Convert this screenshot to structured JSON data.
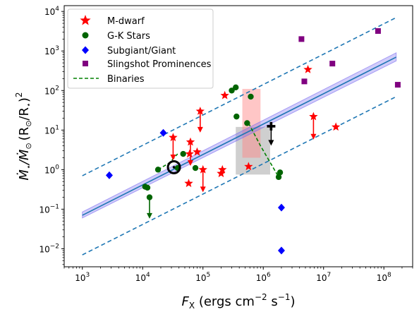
{
  "chart_data": {
    "type": "scatter",
    "title": "",
    "xscale": "log",
    "yscale": "log",
    "xlim": [
      500,
      300000000
    ],
    "ylim": [
      0.0035,
      14000
    ],
    "grid": false,
    "legend_position": "top-left",
    "xlabel": {
      "main": "F",
      "sub": "X",
      "unit_open": " (ergs cm",
      "exp1": "−2",
      "unit_mid": " s",
      "exp2": "−1",
      "unit_close": ")"
    },
    "ylabel": {
      "dotM1": "Ṁ",
      "sub1": "⋆",
      "slash": "/Ṁ",
      "sub2": "⊙",
      "open": "(R",
      "sub3": "⊙",
      "mid": "/R",
      "sub4": "⋆",
      "close": ")",
      "exp": "2"
    },
    "xticks": [
      {
        "v": 1000,
        "base": "10",
        "exp": "3"
      },
      {
        "v": 10000,
        "base": "10",
        "exp": "4"
      },
      {
        "v": 100000,
        "base": "10",
        "exp": "5"
      },
      {
        "v": 1000000,
        "base": "10",
        "exp": "6"
      },
      {
        "v": 10000000,
        "base": "10",
        "exp": "7"
      },
      {
        "v": 100000000,
        "base": "10",
        "exp": "8"
      }
    ],
    "yticks": [
      {
        "v": 0.01,
        "base": "10",
        "exp": "−2"
      },
      {
        "v": 0.1,
        "base": "10",
        "exp": "−1"
      },
      {
        "v": 1,
        "base": "10",
        "exp": "0"
      },
      {
        "v": 10,
        "base": "10",
        "exp": "1"
      },
      {
        "v": 100,
        "base": "10",
        "exp": "2"
      },
      {
        "v": 1000,
        "base": "10",
        "exp": "3"
      },
      {
        "v": 10000,
        "base": "10",
        "exp": "4"
      }
    ],
    "legend": [
      {
        "label": "M-dwarf",
        "marker": "star",
        "color": "#ff0000"
      },
      {
        "label": "G-K Stars",
        "marker": "circle",
        "color": "#006400"
      },
      {
        "label": "Subgiant/Giant",
        "marker": "diamond",
        "color": "#0000ff"
      },
      {
        "label": "Slingshot Prominences",
        "marker": "square",
        "color": "#800080"
      },
      {
        "label": "Binaries",
        "marker": "dashed-line",
        "color": "#008000"
      }
    ],
    "colors": {
      "mdwarf": "#ff0000",
      "gk": "#006400",
      "giant": "#0000ff",
      "slingshot": "#800080",
      "fit": "#1f77b4",
      "band": "#7b6cf0",
      "binary": "#008000"
    },
    "fit": {
      "x": [
        1000,
        160000000
      ],
      "y": [
        0.07,
        700
      ]
    },
    "fit_band": {
      "lower": [
        0.06,
        560
      ],
      "upper": [
        0.085,
        900
      ]
    },
    "dashed_upper": {
      "x": [
        1000,
        160000000
      ],
      "y": [
        0.7,
        7000
      ]
    },
    "dashed_lower": {
      "x": [
        1000,
        160000000
      ],
      "y": [
        0.007,
        70
      ]
    },
    "series": [
      {
        "name": "M-dwarf",
        "points": [
          [
            32000,
            6.5
          ],
          [
            90000,
            30
          ],
          [
            62000,
            5
          ],
          [
            60000,
            2.5
          ],
          [
            80000,
            2.8
          ],
          [
            100000,
            1.0
          ],
          [
            200000,
            0.8
          ],
          [
            210000,
            1.0
          ],
          [
            230000,
            75
          ],
          [
            570000,
            1.2
          ],
          [
            58000,
            0.45
          ],
          [
            5500000,
            340
          ],
          [
            6800000,
            22
          ],
          [
            16000000,
            12
          ]
        ],
        "upper_limits": [
          [
            32000,
            6.5,
            1.8
          ],
          [
            90000,
            30,
            9
          ],
          [
            62000,
            5,
            1.3
          ],
          [
            100000,
            1.0,
            0.28
          ],
          [
            6800000,
            22,
            6
          ]
        ]
      },
      {
        "name": "G-K Stars",
        "points": [
          [
            18000,
            1.0
          ],
          [
            11000,
            0.37
          ],
          [
            12000,
            0.35
          ],
          [
            13000,
            0.2
          ],
          [
            38000,
            1.1
          ],
          [
            47000,
            2.5
          ],
          [
            75000,
            1.1
          ],
          [
            300000,
            100
          ],
          [
            350000,
            120
          ],
          [
            360000,
            22
          ],
          [
            540000,
            15
          ],
          [
            620000,
            70
          ],
          [
            1800000,
            0.65
          ],
          [
            1900000,
            0.85
          ]
        ],
        "upper_limits": [
          [
            13000,
            0.2,
            0.06
          ]
        ]
      },
      {
        "name": "Subgiant/Giant",
        "points": [
          [
            2800,
            0.72
          ],
          [
            22000,
            8.5
          ],
          [
            2000000,
            0.11
          ],
          [
            2000000,
            0.009
          ]
        ]
      },
      {
        "name": "Slingshot Prominences",
        "points": [
          [
            4300000,
            2000
          ],
          [
            4800000,
            170
          ],
          [
            14000000,
            480
          ],
          [
            80000000,
            3200
          ],
          [
            170000000,
            140
          ]
        ]
      }
    ],
    "sun": {
      "x": 33000,
      "y": 1.15
    },
    "cross_limit": {
      "x": 1350000,
      "y": 12.5,
      "y_end": 4.2,
      "color": "#000000"
    },
    "binaries": [
      {
        "x": [
          18000,
          28000,
          38000
        ],
        "y": [
          1.0,
          1.5,
          2.5
        ]
      },
      {
        "x": [
          570000,
          900000,
          1800000
        ],
        "y": [
          15,
          4,
          0.65
        ]
      }
    ],
    "rects": [
      {
        "x0": 350000,
        "x1": 1300000,
        "y0": 0.75,
        "y1": 12,
        "color": "#a0a0a0",
        "opacity": 0.5
      },
      {
        "x0": 450000,
        "x1": 900000,
        "y0": 2.0,
        "y1": 110,
        "color": "#ff8080",
        "opacity": 0.45
      }
    ]
  }
}
